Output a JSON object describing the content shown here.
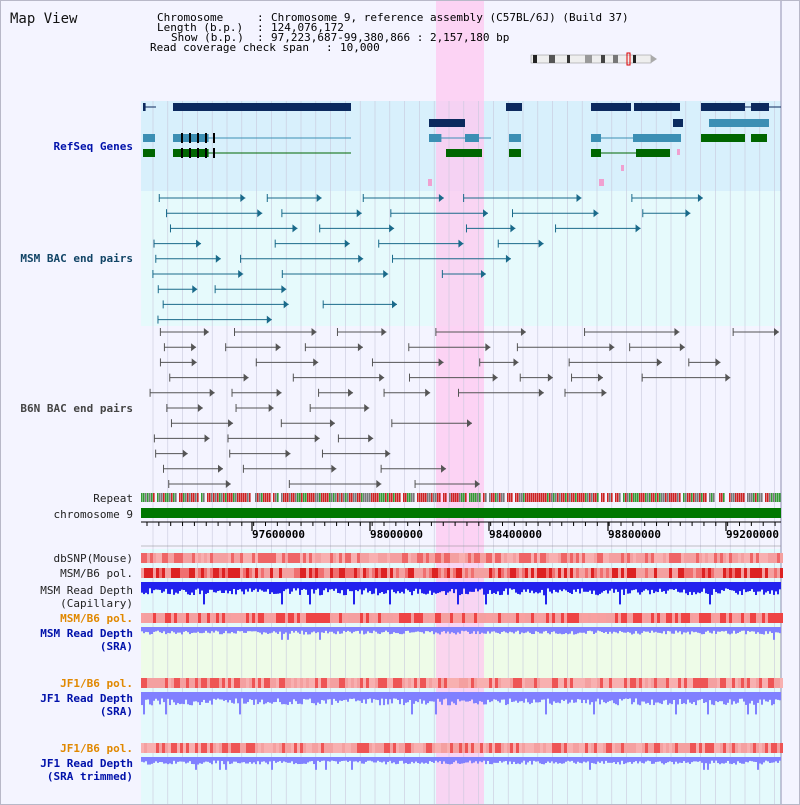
{
  "title": "Map View",
  "header": {
    "chromosome_label": "Chromosome",
    "chromosome_value": "Chromosome 9, reference assembly (C57BL/6J) (Build 37)",
    "length_label": "Length (b.p.)",
    "length_value": "124,076,172",
    "show_label": "Show (b.p.)",
    "show_value": "97,223,687-99,380,866 : 2,157,180 bp",
    "coverage_label": "Read coverage check span",
    "coverage_value": "10,000"
  },
  "tracks": {
    "refseq": "RefSeq Genes",
    "msm_bac": "MSM BAC end pairs",
    "b6n_bac": "B6N BAC end pairs",
    "repeat": "Repeat",
    "chromosome": "chromosome 9",
    "dbsnp": "dbSNP(Mouse)",
    "msm_b6_pol_1": "MSM/B6 pol.",
    "msm_depth_cap_1": "MSM Read Depth",
    "msm_depth_cap_2": "(Capillary)",
    "msm_b6_pol_2": "MSM/B6 pol.",
    "msm_depth_sra_1": "MSM Read Depth",
    "msm_depth_sra_2": "(SRA)",
    "jf1_b6_pol_1": "JF1/B6 pol.",
    "jf1_depth_sra_1": "JF1 Read Depth",
    "jf1_depth_sra_2": "(SRA)",
    "jf1_b6_pol_2": "JF1/B6 pol.",
    "jf1_depth_trim_1": "JF1 Read Depth",
    "jf1_depth_trim_2": "(SRA trimmed)"
  },
  "axis": {
    "ticks": [
      "97600000",
      "98000000",
      "98400000",
      "98800000",
      "99200000"
    ]
  },
  "colors": {
    "refseq_bg": "#d8f0fc",
    "msm_bg": "#e6fafc",
    "b6n_bg": "#f4f4ff",
    "highlight": "#ffc8f0",
    "gene_dark": "#0c2a5e",
    "gene_mid": "#3c8fb4",
    "gene_green": "#006600",
    "msm_line": "#1a6a8a",
    "b6n_line": "#555555",
    "chromosome": "#007700",
    "depth_blue": "#2222ee",
    "depth_light": "#8080ff"
  }
}
